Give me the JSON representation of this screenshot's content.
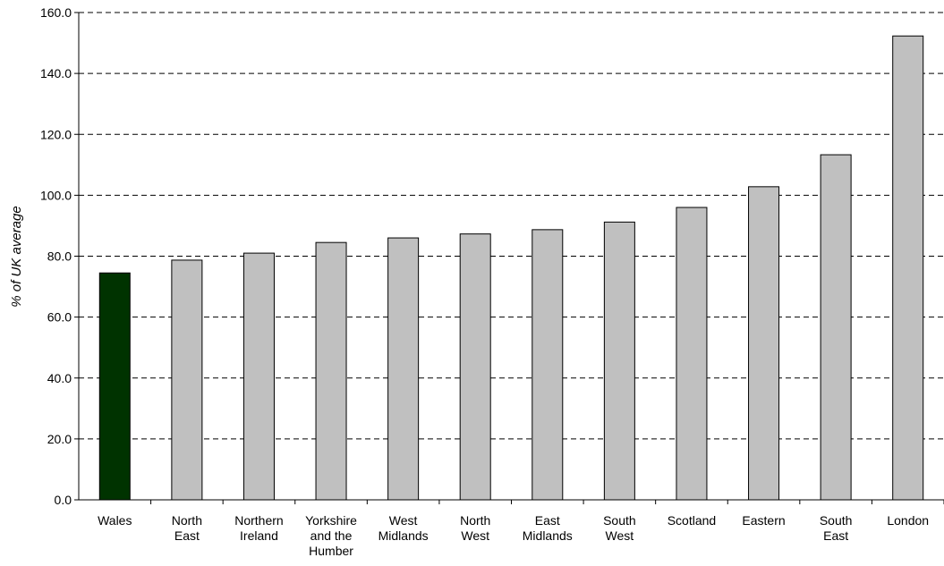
{
  "chart_data": {
    "type": "bar",
    "title": "",
    "xlabel": "",
    "ylabel": "% of UK average",
    "categories": [
      [
        "Wales"
      ],
      [
        "North",
        "East"
      ],
      [
        "Northern",
        "Ireland"
      ],
      [
        "Yorkshire",
        "and the",
        "Humber"
      ],
      [
        "West",
        "Midlands"
      ],
      [
        "North",
        "West"
      ],
      [
        "East",
        "Midlands"
      ],
      [
        "South",
        "West"
      ],
      [
        "Scotland"
      ],
      [
        "Eastern"
      ],
      [
        "South",
        "East"
      ],
      [
        "London"
      ]
    ],
    "values": [
      74.5,
      78.7,
      81.0,
      84.5,
      86.0,
      87.3,
      88.7,
      91.2,
      96.0,
      102.8,
      113.3,
      152.3
    ],
    "ylim": [
      0,
      160
    ],
    "yticks": [
      "0.0",
      "20.0",
      "40.0",
      "60.0",
      "80.0",
      "100.0",
      "120.0",
      "140.0",
      "160.0"
    ],
    "grid": "horizontal-dashed",
    "legend": "none",
    "colors": {
      "highlight": "#003300",
      "bar": "#c0c0c0",
      "outline": "#000000"
    },
    "highlight_index": 0
  }
}
